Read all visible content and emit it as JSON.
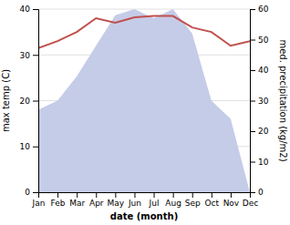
{
  "chart_data": {
    "type": "line",
    "categories": [
      "Jan",
      "Feb",
      "Mar",
      "Apr",
      "May",
      "Jun",
      "Jul",
      "Aug",
      "Sep",
      "Oct",
      "Nov",
      "Dec"
    ],
    "xlabel": "date (month)",
    "ylabel": "max temp (C)",
    "y2label": "med. precipitation (kg/m2)",
    "series": [
      {
        "type": "area",
        "axis": "y2",
        "color": "#c5cce8",
        "values": [
          27,
          30,
          38,
          48,
          58,
          60,
          57,
          60,
          52,
          30,
          24,
          0
        ]
      },
      {
        "type": "line",
        "color": "#c0504d",
        "values": [
          31.5,
          33.0,
          35.0,
          38.0,
          37.0,
          38.2,
          38.5,
          38.5,
          36.0,
          35.0,
          32.0,
          33.0
        ]
      }
    ],
    "ylim": [
      0,
      40
    ],
    "yticks": [
      0,
      10,
      20,
      30,
      40
    ],
    "y2lim": [
      0,
      60
    ],
    "y2ticks": [
      0,
      10,
      20,
      30,
      40,
      50,
      60
    ],
    "grid": true
  }
}
